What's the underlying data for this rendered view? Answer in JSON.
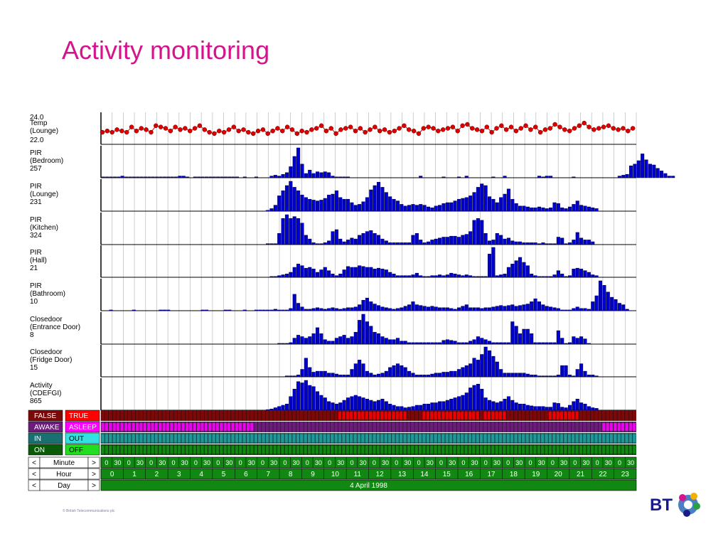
{
  "title": "Activity monitoring",
  "copyright": "© British Telecommunications plc",
  "logo_text": "BT",
  "colors": {
    "title": "#d4148c",
    "bar": "#0000cc",
    "bar_outline": "#000044",
    "temp": "#dd0000",
    "false_bg": "#7a0a0a",
    "true_bg": "#ff0000",
    "awake_bg": "#6a1e7a",
    "asleep_bg": "#ff00ff",
    "in_bg": "#1a7070",
    "out_bg": "#33e0e0",
    "on_bg": "#0a5a0a",
    "off_bg": "#22dd22",
    "nav_bg": "#118811"
  },
  "chart_data": {
    "type": "bar",
    "date": "4 April 1998",
    "x_unit": "half-hour slots",
    "temp": {
      "label": [
        "Temp",
        "(Lounge)"
      ],
      "ymax": "24.0",
      "ymin": "22.0",
      "values": [
        22.7,
        22.8,
        22.7,
        22.9,
        22.8,
        22.7,
        23.1,
        22.8,
        23.0,
        22.9,
        22.7,
        23.2,
        23.1,
        23.0,
        22.8,
        23.1,
        22.9,
        23.0,
        22.8,
        23.0,
        23.2,
        22.9,
        22.7,
        22.6,
        22.8,
        22.7,
        22.9,
        23.1,
        22.8,
        22.9,
        22.7,
        22.6,
        22.8,
        22.9,
        22.6,
        22.8,
        23.0,
        22.8,
        23.1,
        22.9,
        22.6,
        22.8,
        22.7,
        22.9,
        23.0,
        23.2,
        22.8,
        23.0,
        22.6,
        22.9,
        23.0,
        23.1,
        22.8,
        23.0,
        22.7,
        22.9,
        23.1,
        22.8,
        22.9,
        22.7,
        22.8,
        23.0,
        23.2,
        22.9,
        22.8,
        22.6,
        23.0,
        23.1,
        23.0,
        22.8,
        22.9,
        23.0,
        23.1,
        22.8,
        23.2,
        23.3,
        23.0,
        22.9,
        22.8,
        23.1,
        22.7,
        23.0,
        23.2,
        22.9,
        23.1,
        22.8,
        23.0,
        23.2,
        22.9,
        23.1,
        22.7,
        22.9,
        23.0,
        23.3,
        23.1,
        22.9,
        22.8,
        23.0,
        23.2,
        23.4,
        23.1,
        22.9,
        23.0,
        23.1,
        23.2,
        23.0,
        22.9,
        23.0,
        22.8,
        23.0
      ]
    },
    "rows": [
      {
        "label": [
          "PIR",
          "(Bedroom)"
        ],
        "value": "257",
        "values": [
          1,
          1,
          1,
          1,
          1,
          2,
          1,
          1,
          1,
          1,
          1,
          1,
          1,
          1,
          1,
          1,
          1,
          1,
          1,
          1,
          2,
          2,
          1,
          0,
          1,
          1,
          1,
          1,
          1,
          1,
          1,
          1,
          1,
          1,
          1,
          1,
          0,
          1,
          0,
          0,
          1,
          0,
          0,
          0,
          2,
          3,
          2,
          4,
          6,
          13,
          25,
          35,
          16,
          5,
          9,
          5,
          7,
          6,
          7,
          6,
          2,
          1,
          1,
          1,
          1,
          0,
          0,
          0,
          0,
          0,
          0,
          0,
          0,
          0,
          0,
          0,
          0,
          0,
          0,
          0,
          0,
          0,
          0,
          2,
          0,
          0,
          0,
          0,
          0,
          1,
          0,
          0,
          0,
          1,
          0,
          2,
          0,
          0,
          0,
          0,
          0,
          0,
          1,
          0,
          0,
          2,
          0,
          0,
          0,
          0,
          0,
          0,
          0,
          0,
          2,
          1,
          2,
          2,
          0,
          0,
          0,
          0,
          0,
          1,
          0,
          0,
          0,
          0,
          0,
          0,
          0,
          0,
          0,
          0,
          0,
          2,
          3,
          4,
          14,
          16,
          20,
          28,
          21,
          16,
          15,
          11,
          8,
          5,
          2,
          2
        ]
      },
      {
        "label": [
          "PIR",
          "(Lounge)"
        ],
        "value": "231",
        "values": [
          0,
          0,
          0,
          0,
          0,
          0,
          0,
          0,
          0,
          0,
          0,
          0,
          0,
          0,
          0,
          0,
          0,
          0,
          0,
          0,
          0,
          0,
          0,
          0,
          0,
          0,
          0,
          0,
          0,
          0,
          0,
          0,
          0,
          0,
          0,
          0,
          0,
          0,
          0,
          0,
          0,
          0,
          0,
          1,
          3,
          7,
          18,
          24,
          30,
          35,
          28,
          24,
          19,
          16,
          14,
          13,
          12,
          13,
          15,
          19,
          20,
          24,
          16,
          14,
          14,
          10,
          7,
          8,
          11,
          16,
          25,
          30,
          34,
          28,
          22,
          17,
          14,
          12,
          8,
          6,
          7,
          8,
          7,
          8,
          7,
          5,
          4,
          6,
          7,
          9,
          10,
          10,
          12,
          14,
          15,
          16,
          18,
          22,
          28,
          32,
          30,
          17,
          14,
          10,
          16,
          20,
          26,
          14,
          9,
          6,
          6,
          5,
          4,
          4,
          5,
          4,
          3,
          4,
          10,
          9,
          4,
          3,
          5,
          8,
          12,
          7,
          6,
          5,
          4,
          3
        ]
      },
      {
        "label": [
          "PIR",
          "(Kitchen)"
        ],
        "value": "324",
        "values": [
          0,
          0,
          0,
          0,
          0,
          0,
          0,
          0,
          0,
          0,
          0,
          0,
          0,
          0,
          0,
          0,
          0,
          0,
          0,
          0,
          0,
          0,
          0,
          0,
          0,
          0,
          0,
          0,
          0,
          0,
          0,
          0,
          0,
          0,
          0,
          0,
          0,
          0,
          0,
          0,
          0,
          0,
          0,
          1,
          1,
          1,
          12,
          28,
          32,
          28,
          30,
          28,
          23,
          10,
          6,
          2,
          1,
          1,
          2,
          4,
          14,
          16,
          6,
          3,
          5,
          7,
          6,
          10,
          12,
          14,
          15,
          12,
          10,
          6,
          4,
          2,
          2,
          2,
          2,
          2,
          2,
          10,
          12,
          5,
          2,
          3,
          5,
          6,
          7,
          8,
          8,
          9,
          9,
          8,
          10,
          11,
          14,
          26,
          28,
          26,
          12,
          4,
          5,
          12,
          10,
          6,
          7,
          4,
          3,
          3,
          2,
          2,
          2,
          2,
          1,
          2,
          1,
          1,
          1,
          8,
          7,
          1,
          2,
          5,
          13,
          7,
          5,
          5,
          3
        ]
      },
      {
        "label": [
          "PIR",
          "(Hall)"
        ],
        "value": "21",
        "values": [
          0,
          0,
          0,
          0,
          0,
          0,
          0,
          0,
          0,
          0,
          0,
          0,
          0,
          0,
          0,
          0,
          0,
          0,
          0,
          0,
          0,
          0,
          0,
          0,
          0,
          0,
          0,
          0,
          0,
          0,
          0,
          0,
          0,
          0,
          0,
          0,
          0,
          0,
          0,
          0,
          0,
          0,
          0,
          0,
          1,
          1,
          2,
          3,
          4,
          6,
          12,
          16,
          14,
          11,
          12,
          10,
          6,
          9,
          12,
          8,
          4,
          2,
          4,
          9,
          13,
          12,
          12,
          14,
          13,
          12,
          12,
          10,
          11,
          10,
          9,
          6,
          4,
          2,
          2,
          2,
          2,
          3,
          5,
          2,
          1,
          1,
          2,
          2,
          3,
          2,
          3,
          5,
          4,
          3,
          2,
          3,
          2,
          1,
          1,
          1,
          1,
          28,
          36,
          2,
          3,
          4,
          12,
          16,
          20,
          24,
          18,
          14,
          4,
          2,
          1,
          1,
          1,
          1,
          3,
          8,
          4,
          1,
          2,
          10,
          11,
          10,
          8,
          6,
          3,
          2
        ]
      },
      {
        "label": [
          "PIR",
          "(Bathroom)"
        ],
        "value": "10",
        "values": [
          0,
          0,
          1,
          0,
          0,
          0,
          0,
          0,
          1,
          0,
          0,
          0,
          0,
          0,
          0,
          1,
          1,
          1,
          0,
          0,
          0,
          0,
          0,
          0,
          0,
          0,
          1,
          1,
          0,
          0,
          0,
          0,
          1,
          1,
          0,
          0,
          0,
          1,
          0,
          0,
          1,
          1,
          1,
          1,
          1,
          2,
          1,
          1,
          1,
          3,
          22,
          10,
          5,
          2,
          2,
          3,
          4,
          3,
          2,
          3,
          4,
          3,
          2,
          3,
          4,
          4,
          5,
          8,
          14,
          17,
          12,
          9,
          7,
          5,
          4,
          3,
          2,
          3,
          4,
          6,
          8,
          12,
          8,
          7,
          6,
          5,
          6,
          5,
          4,
          4,
          4,
          3,
          2,
          4,
          6,
          8,
          4,
          4,
          4,
          3,
          4,
          4,
          5,
          6,
          7,
          6,
          7,
          8,
          6,
          7,
          8,
          9,
          12,
          16,
          12,
          8,
          6,
          5,
          4,
          3,
          1,
          1,
          1,
          3,
          5,
          3,
          3,
          2,
          12,
          20,
          40,
          34,
          25,
          18,
          15,
          10,
          8,
          2
        ]
      },
      {
        "label": [
          "Closedoor",
          "(Entrance Door)"
        ],
        "value": "8",
        "values": [
          0,
          0,
          0,
          0,
          0,
          0,
          0,
          0,
          0,
          0,
          0,
          0,
          0,
          0,
          0,
          0,
          0,
          0,
          0,
          0,
          0,
          0,
          0,
          0,
          0,
          0,
          0,
          0,
          0,
          0,
          0,
          0,
          0,
          0,
          0,
          0,
          0,
          0,
          0,
          0,
          0,
          0,
          0,
          0,
          0,
          0,
          1,
          1,
          1,
          2,
          8,
          12,
          10,
          8,
          10,
          14,
          22,
          14,
          6,
          4,
          4,
          8,
          10,
          12,
          8,
          10,
          16,
          32,
          40,
          30,
          24,
          16,
          14,
          10,
          8,
          6,
          6,
          8,
          4,
          4,
          2,
          2,
          2,
          2,
          2,
          2,
          2,
          2,
          2,
          5,
          6,
          5,
          4,
          2,
          2,
          2,
          4,
          6,
          10,
          8,
          6,
          4,
          2,
          2,
          2,
          2,
          2,
          30,
          24,
          14,
          20,
          20,
          14,
          2,
          2,
          2,
          2,
          2,
          2,
          18,
          8,
          1,
          2,
          10,
          8,
          10,
          7,
          1
        ]
      },
      {
        "label": [
          "Closedoor",
          "(Fridge Door)"
        ],
        "value": "15",
        "values": [
          0,
          0,
          0,
          0,
          0,
          0,
          0,
          0,
          0,
          0,
          0,
          0,
          0,
          0,
          0,
          0,
          0,
          0,
          0,
          0,
          0,
          0,
          0,
          0,
          0,
          0,
          0,
          0,
          0,
          0,
          0,
          0,
          0,
          0,
          0,
          0,
          0,
          0,
          0,
          0,
          0,
          0,
          0,
          0,
          0,
          0,
          0,
          0,
          1,
          1,
          1,
          2,
          8,
          20,
          10,
          5,
          6,
          6,
          6,
          4,
          4,
          3,
          2,
          2,
          2,
          8,
          14,
          18,
          14,
          6,
          4,
          2,
          3,
          4,
          6,
          10,
          12,
          14,
          12,
          10,
          6,
          4,
          2,
          2,
          2,
          2,
          3,
          4,
          4,
          5,
          5,
          6,
          6,
          8,
          10,
          12,
          14,
          20,
          18,
          24,
          32,
          28,
          22,
          16,
          8,
          4,
          4,
          4,
          4,
          4,
          4,
          3,
          2,
          2,
          1,
          1,
          1,
          1,
          1,
          2,
          12,
          12,
          2,
          1,
          8,
          14,
          6,
          2,
          2,
          1
        ]
      },
      {
        "label": [
          "Activity",
          "(CDEFGI)"
        ],
        "value": "865",
        "values": [
          0,
          0,
          0,
          0,
          0,
          0,
          0,
          0,
          0,
          0,
          0,
          0,
          0,
          0,
          0,
          0,
          0,
          0,
          0,
          0,
          0,
          0,
          0,
          0,
          0,
          0,
          0,
          0,
          0,
          0,
          0,
          0,
          0,
          0,
          0,
          0,
          0,
          0,
          0,
          0,
          0,
          0,
          0,
          1,
          2,
          4,
          6,
          8,
          10,
          22,
          34,
          46,
          44,
          48,
          40,
          38,
          30,
          24,
          20,
          14,
          12,
          10,
          12,
          16,
          20,
          22,
          24,
          22,
          20,
          18,
          16,
          14,
          16,
          18,
          14,
          10,
          8,
          6,
          6,
          4,
          5,
          6,
          8,
          8,
          10,
          10,
          12,
          12,
          14,
          14,
          16,
          18,
          20,
          22,
          24,
          28,
          36,
          40,
          42,
          34,
          20,
          16,
          14,
          12,
          14,
          18,
          22,
          16,
          12,
          10,
          10,
          8,
          7,
          6,
          6,
          6,
          5,
          5,
          12,
          11,
          5,
          4,
          8,
          14,
          18,
          12,
          10,
          6,
          4,
          3
        ]
      }
    ],
    "state_rows": [
      {
        "left": "FALSE",
        "right": "TRUE"
      },
      {
        "left": "AWAKE",
        "right": "ASLEEP"
      },
      {
        "left": "IN",
        "right": "OUT"
      },
      {
        "left": "ON",
        "right": "OFF"
      }
    ],
    "nav": {
      "prev": "<",
      "next": ">",
      "minute_label": "Minute",
      "hour_label": "Hour",
      "day_label": "Day",
      "minute_ticks": [
        "0",
        "30"
      ],
      "hours": [
        "0",
        "1",
        "2",
        "3",
        "4",
        "5",
        "6",
        "7",
        "8",
        "9",
        "10",
        "11",
        "12",
        "13",
        "14",
        "15",
        "16",
        "17",
        "18",
        "19",
        "20",
        "21",
        "22",
        "23"
      ]
    }
  }
}
